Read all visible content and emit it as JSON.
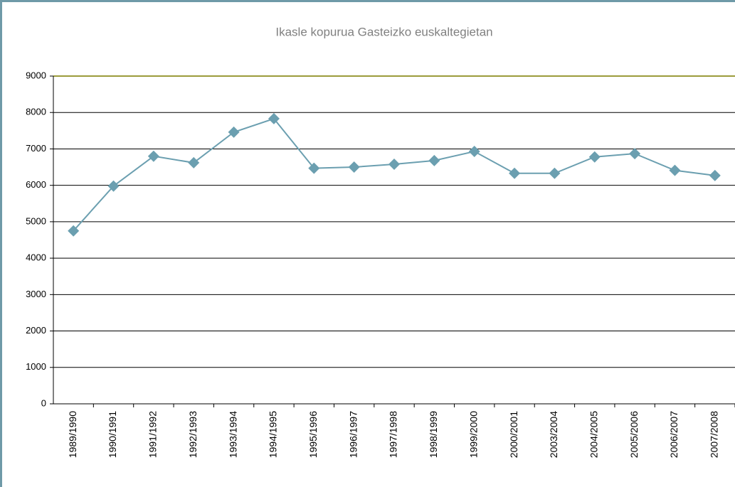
{
  "chart_data": {
    "type": "line",
    "title": "Ikasle kopurua Gasteizko euskaltegietan",
    "categories": [
      "1989/1990",
      "1990/1991",
      "1991/1992",
      "1992/1993",
      "1993/1994",
      "1994/1995",
      "1995/1996",
      "1996/1997",
      "1997/1998",
      "1998/1999",
      "1999/2000",
      "2000/2001",
      "2003/2004",
      "2004/2005",
      "2005/2006",
      "2006/2007",
      "2007/2008"
    ],
    "series": [
      {
        "name": "Ikasle kopurua",
        "color": "#6b9fb0",
        "values": [
          4750,
          5980,
          6800,
          6620,
          7460,
          7830,
          6470,
          6500,
          6580,
          6680,
          6930,
          6330,
          6330,
          6780,
          6870,
          6410,
          6270
        ]
      }
    ],
    "ylim": [
      0,
      9000
    ],
    "yticks": [
      0,
      1000,
      2000,
      3000,
      4000,
      5000,
      6000,
      7000,
      8000,
      9000
    ],
    "grid": true
  }
}
